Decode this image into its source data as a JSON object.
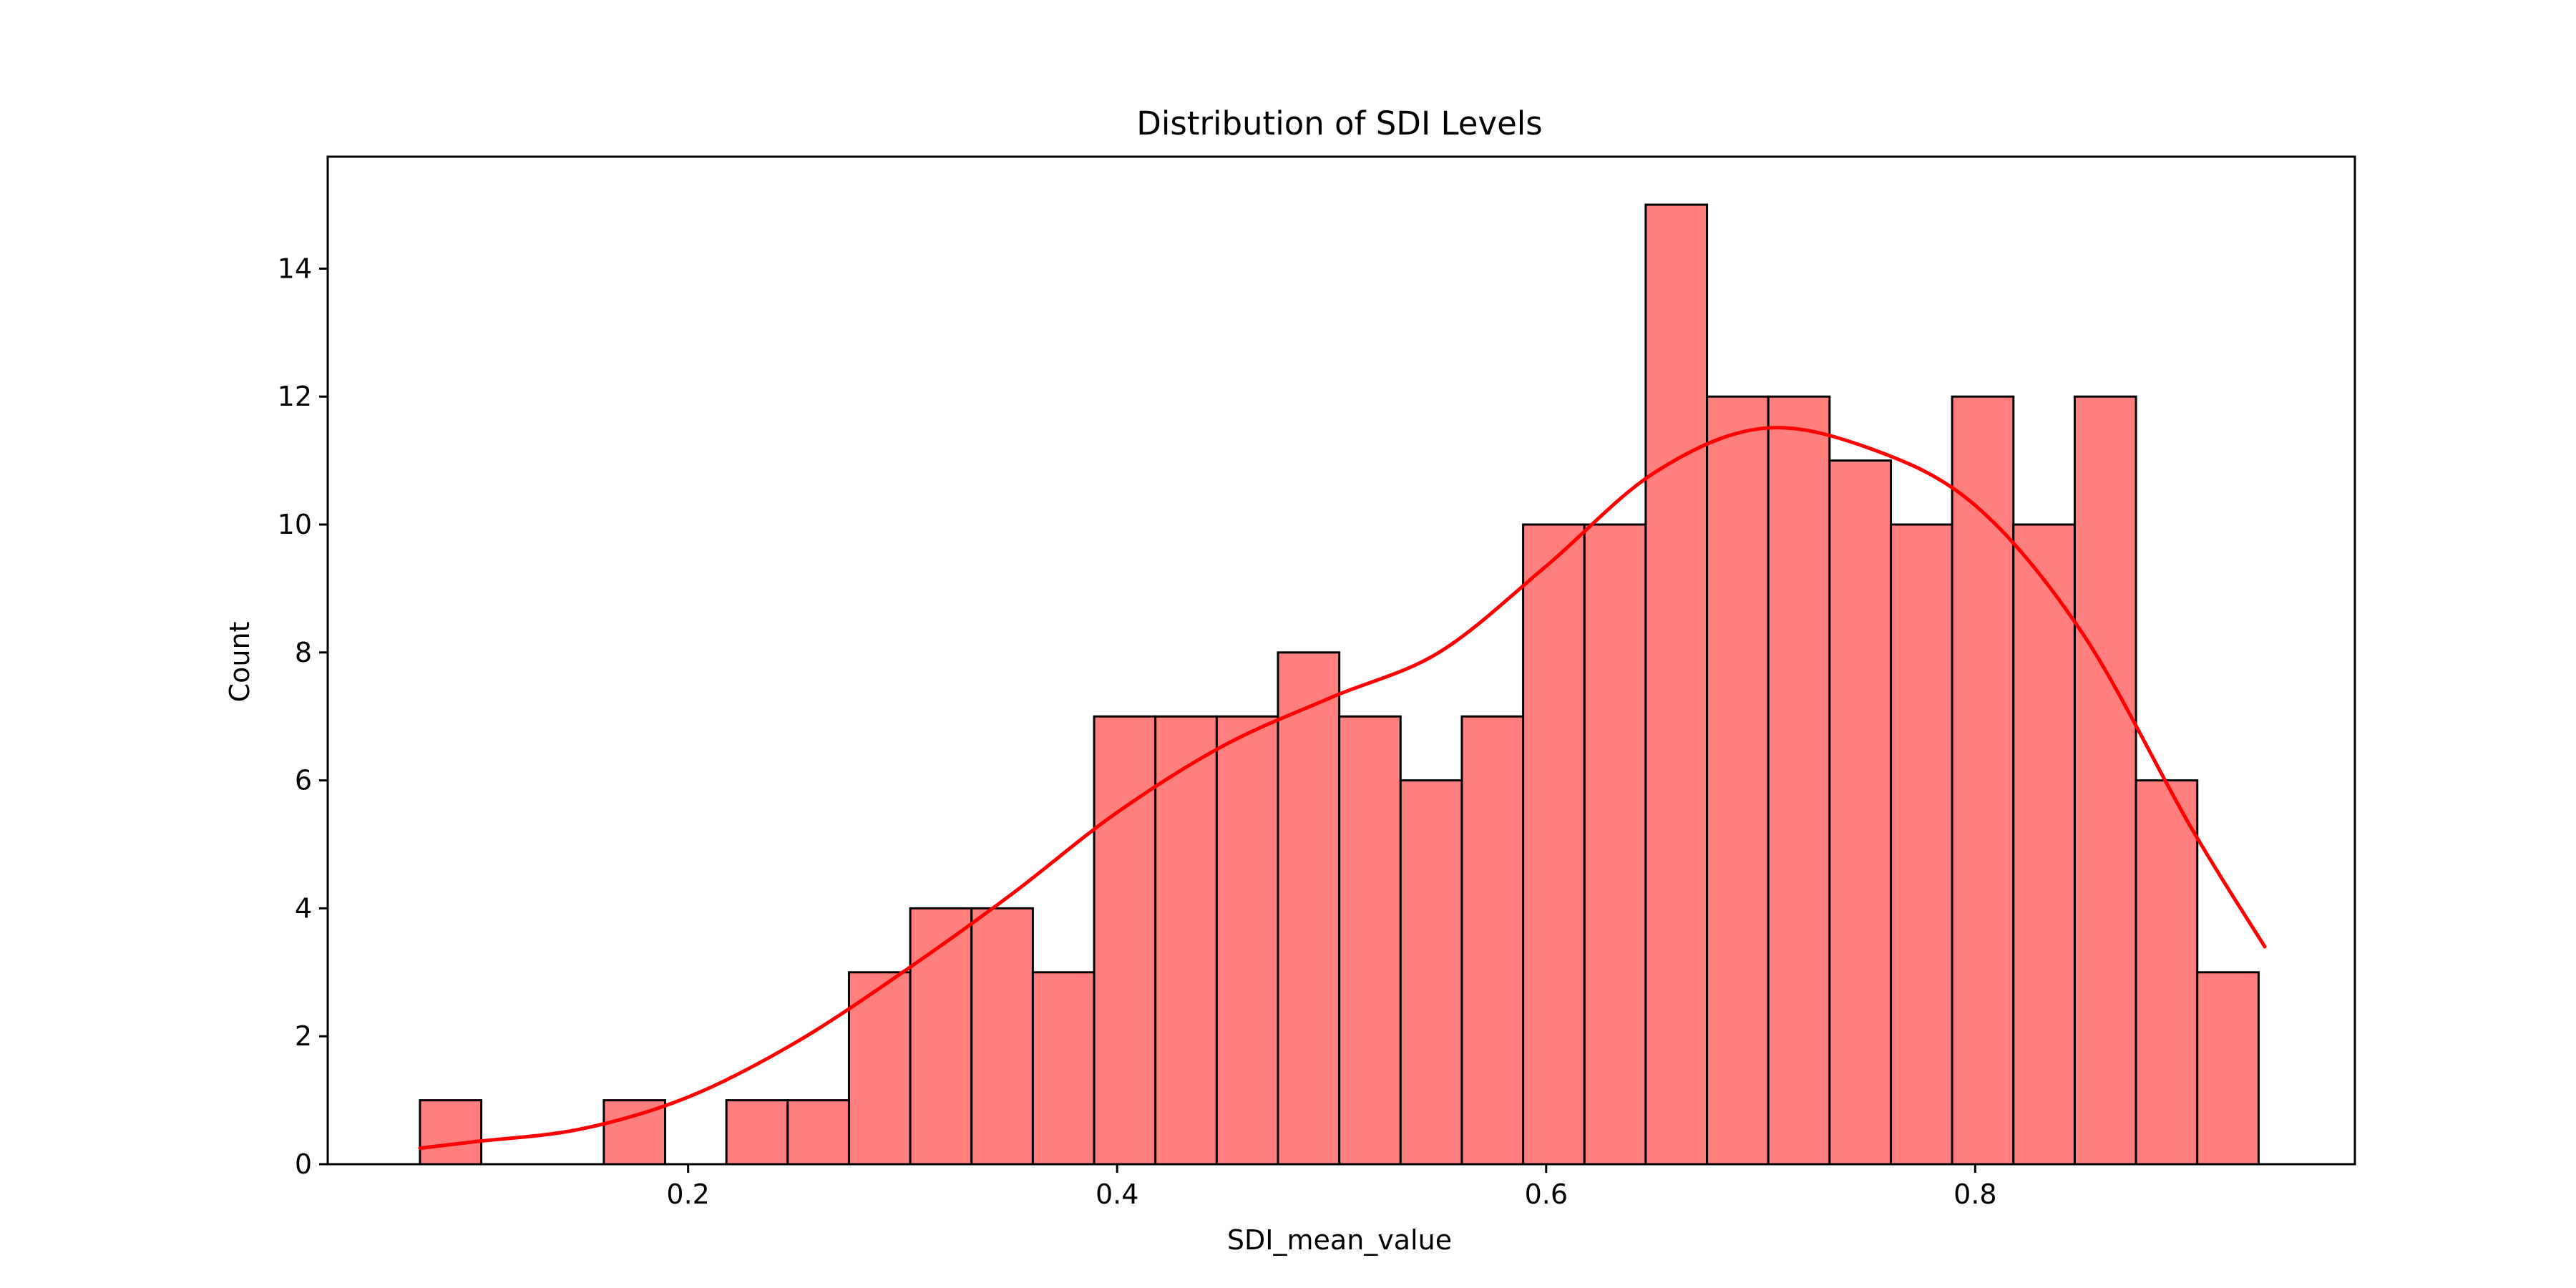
{
  "chart_data": {
    "type": "bar",
    "title": "Distribution of SDI Levels",
    "xlabel": "SDI_mean_value",
    "ylabel": "Count",
    "xlim": [
      0.032,
      0.977
    ],
    "ylim": [
      0,
      15.75
    ],
    "xticks": [
      0.2,
      0.4,
      0.6,
      0.8
    ],
    "xtick_labels": [
      "0.2",
      "0.4",
      "0.6",
      "0.8"
    ],
    "yticks": [
      0,
      2,
      4,
      6,
      8,
      10,
      12,
      14
    ],
    "ytick_labels": [
      "0",
      "2",
      "4",
      "6",
      "8",
      "10",
      "12",
      "14"
    ],
    "bin_start": 0.075,
    "bin_width": 0.02857,
    "bar_color": "#ff7f7f",
    "bar_edge_color": "#000000",
    "kde_color": "#ff0000",
    "grid": false,
    "series": [
      {
        "type": "histogram",
        "values": [
          1,
          0,
          0,
          1,
          0,
          1,
          1,
          3,
          4,
          4,
          3,
          7,
          7,
          7,
          8,
          7,
          6,
          7,
          10,
          10,
          15,
          12,
          12,
          11,
          10,
          12,
          10,
          12,
          6,
          3
        ]
      },
      {
        "type": "kde",
        "x": [
          0.075,
          0.1,
          0.15,
          0.2,
          0.25,
          0.3,
          0.35,
          0.4,
          0.45,
          0.5,
          0.55,
          0.6,
          0.65,
          0.7,
          0.75,
          0.8,
          0.85,
          0.9,
          0.935
        ],
        "y": [
          0.25,
          0.35,
          0.55,
          1.05,
          1.9,
          3.0,
          4.2,
          5.5,
          6.55,
          7.3,
          8.0,
          9.35,
          10.8,
          11.5,
          11.2,
          10.3,
          8.3,
          5.3,
          3.4
        ]
      }
    ]
  }
}
